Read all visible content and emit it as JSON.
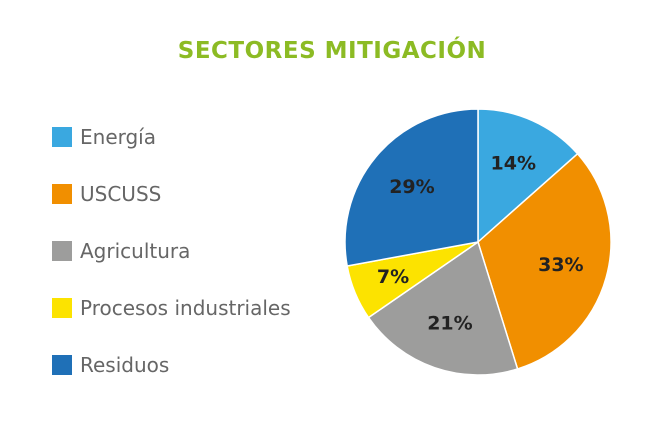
{
  "chart_data": {
    "type": "pie",
    "title": "SECTORES MITIGACIÓN",
    "legend_position": "left",
    "slices": [
      {
        "label": "Energía",
        "value": 14,
        "value_label": "14%",
        "color": "#3aa8e0"
      },
      {
        "label": "USCUSS",
        "value": 33,
        "value_label": "33%",
        "color": "#f18f00"
      },
      {
        "label": "Agricultura",
        "value": 21,
        "value_label": "21%",
        "color": "#9d9d9c"
      },
      {
        "label": "Procesos industriales",
        "value": 7,
        "value_label": "7%",
        "color": "#fce300"
      },
      {
        "label": "Residuos",
        "value": 29,
        "value_label": "29%",
        "color": "#1f70b7"
      }
    ]
  },
  "colors": {
    "title": "#8cbb24",
    "legend_text": "#666666",
    "slice_label_text": "#222222"
  }
}
